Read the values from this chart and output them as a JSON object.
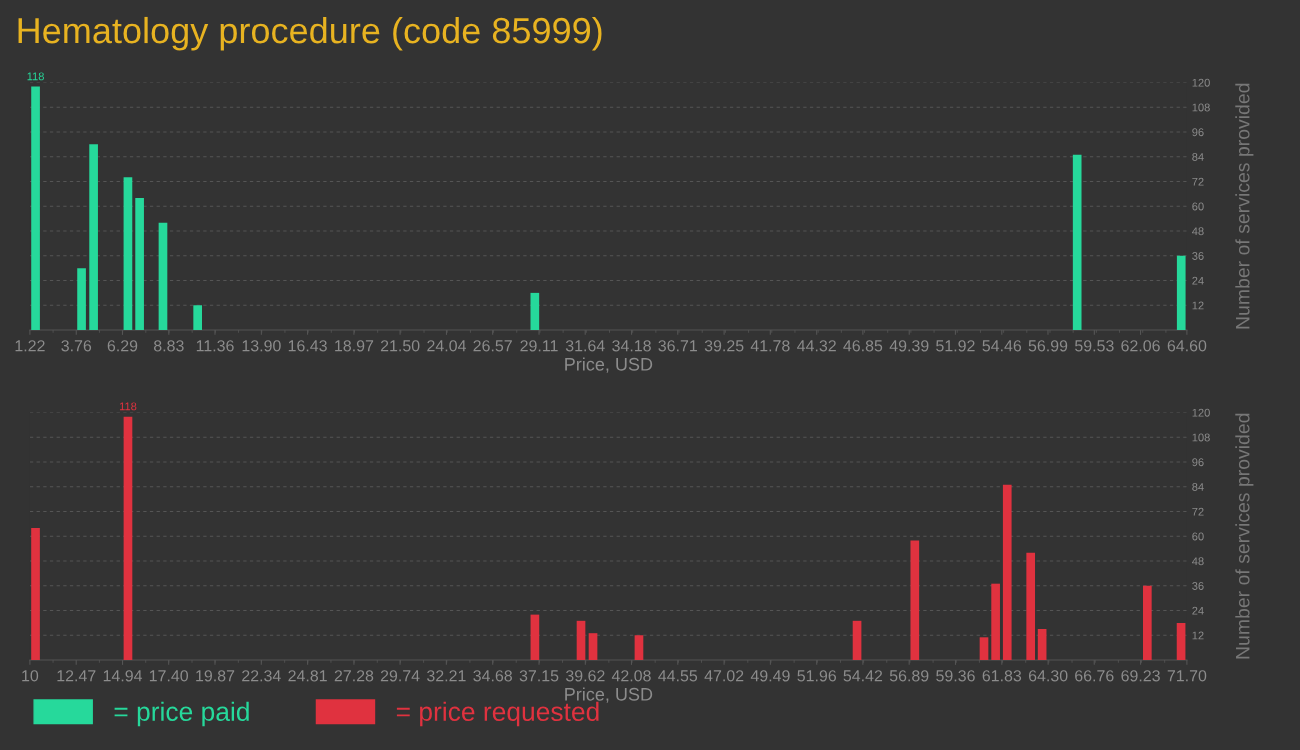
{
  "chart_data": [
    {
      "type": "bar",
      "title": "Hematology procedure (code 85999)",
      "xlabel": "Price, USD",
      "ylabel": "Number of services provided",
      "x": [
        1.53,
        4.05,
        4.71,
        6.59,
        7.23,
        8.51,
        10.41,
        28.88,
        58.59,
        64.29
      ],
      "series": [
        {
          "name": "= price paid",
          "color": "#26d99b",
          "values": [
            118,
            30,
            90,
            74,
            64,
            52,
            12,
            18,
            85,
            36
          ],
          "value_labels": [
            "118",
            null,
            null,
            null,
            null,
            null,
            null,
            null,
            null,
            null
          ]
        }
      ],
      "xlim": [
        1.22,
        64.6
      ],
      "xticks": [
        1.22,
        3.76,
        6.29,
        8.83,
        11.36,
        {
          "value": 13.9,
          "label": "13.90"
        },
        16.43,
        18.97,
        {
          "value": 21.5,
          "label": "21.50"
        },
        24.04,
        26.57,
        29.11,
        31.64,
        34.18,
        36.71,
        39.25,
        41.78,
        44.32,
        46.85,
        49.39,
        51.92,
        54.46,
        56.99,
        59.53,
        62.06,
        {
          "value": 64.6,
          "label": "64.60"
        }
      ],
      "ylim": [
        0,
        120
      ],
      "yticks": [
        12,
        24,
        36,
        48,
        60,
        72,
        84,
        96,
        108,
        120
      ],
      "grid": "y",
      "legend": "bottom"
    },
    {
      "type": "bar",
      "xlabel": "Price, USD",
      "ylabel": "Number of services provided",
      "x": [
        10.3,
        15.23,
        36.93,
        39.39,
        40.03,
        42.48,
        54.11,
        57.19,
        60.88,
        61.5,
        62.12,
        63.37,
        63.98,
        69.59,
        71.39
      ],
      "series": [
        {
          "name": "= price requested",
          "color": "#e0323f",
          "values": [
            64,
            118,
            22,
            19,
            13,
            12,
            19,
            58,
            11,
            37,
            85,
            52,
            15,
            36,
            18
          ],
          "value_labels": [
            null,
            "118",
            null,
            null,
            null,
            null,
            null,
            null,
            null,
            null,
            null,
            null,
            null,
            null,
            null
          ]
        }
      ],
      "xlim": [
        10,
        71.7
      ],
      "xticks": [
        10,
        12.47,
        14.94,
        {
          "value": 17.4,
          "label": "17.40"
        },
        19.87,
        22.34,
        24.81,
        27.28,
        29.74,
        32.21,
        34.68,
        37.15,
        39.62,
        42.08,
        44.55,
        47.02,
        49.49,
        51.96,
        54.42,
        56.89,
        59.36,
        61.83,
        {
          "value": 64.3,
          "label": "64.30"
        },
        66.76,
        69.23,
        {
          "value": 71.7,
          "label": "71.70"
        }
      ],
      "ylim": [
        0,
        120
      ],
      "yticks": [
        12,
        24,
        36,
        48,
        60,
        72,
        84,
        96,
        108,
        120
      ],
      "grid": "y",
      "legend": "bottom"
    }
  ]
}
